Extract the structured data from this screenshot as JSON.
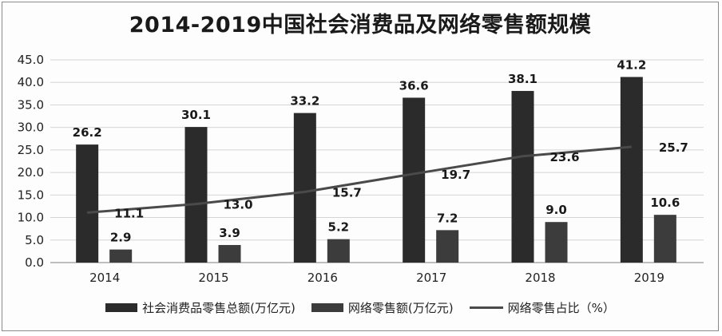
{
  "chart_data": {
    "type": "bar",
    "title": "2014-2019中国社会消费品及网络零售额规模",
    "categories": [
      "2014",
      "2015",
      "2016",
      "2017",
      "2018",
      "2019"
    ],
    "series": [
      {
        "name": "社会消费品零售总额(万亿元)",
        "type": "bar",
        "values": [
          26.2,
          30.1,
          33.2,
          36.6,
          38.1,
          41.2
        ],
        "color": "#2b2b2b"
      },
      {
        "name": "网络零售额(万亿元)",
        "type": "bar",
        "values": [
          2.9,
          3.9,
          5.2,
          7.2,
          9.0,
          10.6
        ],
        "color": "#3c3c3c"
      },
      {
        "name": "网络零售占比（%）",
        "type": "line",
        "values": [
          11.1,
          13.0,
          15.7,
          19.7,
          23.6,
          25.7
        ],
        "color": "#4a4a4a"
      }
    ],
    "ylim": [
      0,
      45
    ],
    "yticks": [
      "0.0",
      "5.0",
      "10.0",
      "15.0",
      "20.0",
      "25.0",
      "30.0",
      "35.0",
      "40.0",
      "45.0"
    ],
    "grid": true,
    "legend_position": "bottom"
  }
}
